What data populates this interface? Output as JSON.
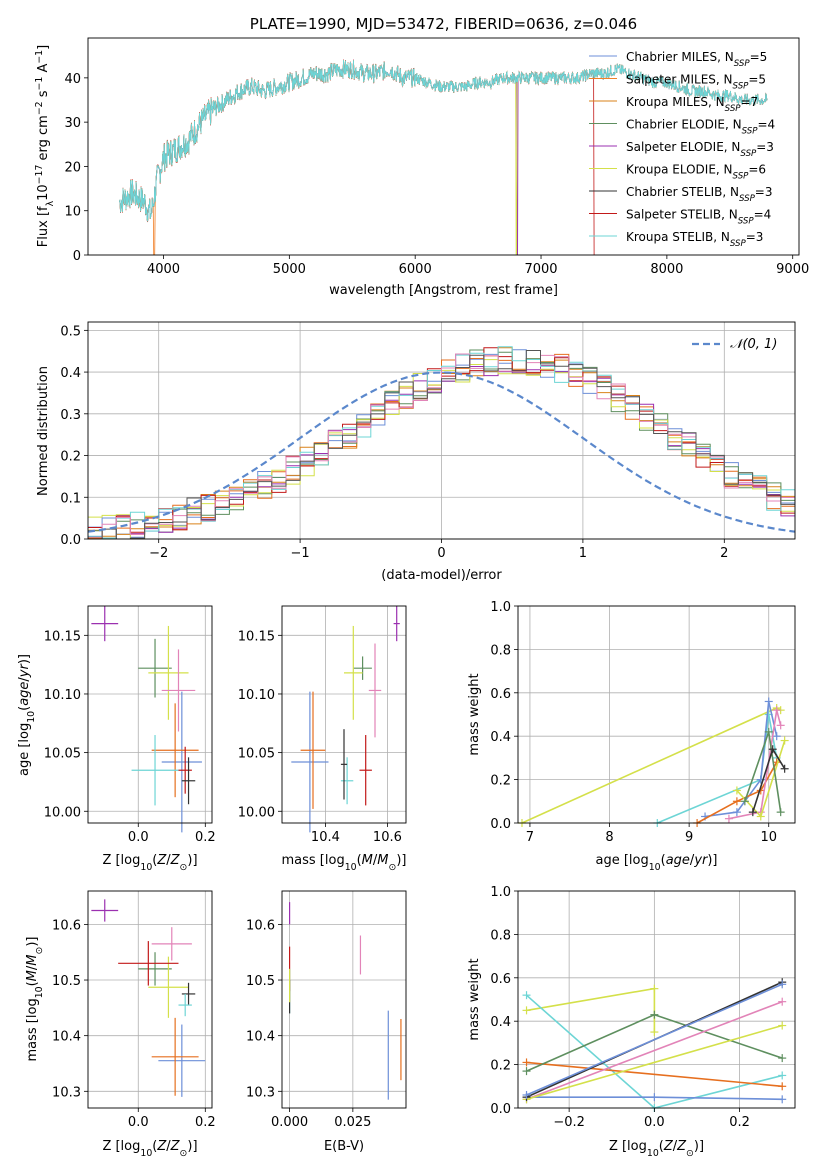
{
  "colors": {
    "series": [
      "#6d8fd8",
      "#f07f27",
      "#d9821a",
      "#5e8f5f",
      "#9b30b0",
      "#d4e04a",
      "#333333",
      "#c21919",
      "#6dd5d5"
    ],
    "ts_colors": [
      "#6d8fd8",
      "#e66f1f",
      "#5e8f5f",
      "#9b30b0",
      "#d4e04a",
      "#e284b8",
      "#c21919",
      "#6dd5d5",
      "#333333"
    ]
  },
  "chart_data": [
    {
      "type": "line",
      "title": "PLATE=1990, MJD=53472, FIBERID=0636, z=0.046",
      "xlabel": "wavelength [Angstrom, rest frame]",
      "ylabel": "Flux [f_λ 10^-17 erg cm^-2 s^-1 A^-1]",
      "xlim": [
        3400,
        9050
      ],
      "ylim": [
        0,
        49
      ],
      "xticks": [
        4000,
        5000,
        6000,
        7000,
        8000,
        9000
      ],
      "yticks": [
        0,
        10,
        20,
        30,
        40
      ],
      "legend_position": "right",
      "series": [
        {
          "name": "Chabrier MILES, N_SSP=5"
        },
        {
          "name": "Salpeter MILES, N_SSP=5"
        },
        {
          "name": "Kroupa MILES, N_SSP=7"
        },
        {
          "name": "Chabrier ELODIE, N_SSP=4"
        },
        {
          "name": "Salpeter ELODIE, N_SSP=3"
        },
        {
          "name": "Kroupa ELODIE, N_SSP=6"
        },
        {
          "name": "Chabrier STELIB, N_SSP=3"
        },
        {
          "name": "Salpeter STELIB, N_SSP=4"
        },
        {
          "name": "Kroupa STELIB, N_SSP=3"
        }
      ],
      "spectrum_x": [
        3650,
        3700,
        3750,
        3800,
        3850,
        3900,
        3950,
        4000,
        4100,
        4200,
        4300,
        4400,
        4500,
        4600,
        4700,
        4800,
        4900,
        5000,
        5100,
        5200,
        5300,
        5400,
        5500,
        5600,
        5700,
        5800,
        5900,
        6000,
        6100,
        6200,
        6300,
        6400,
        6500,
        6600,
        6700,
        6800,
        6900,
        7000,
        7100,
        7200,
        7300,
        7400,
        7500,
        7600,
        7700,
        7800,
        7900,
        8000,
        8100,
        8200,
        8300,
        8400,
        8500,
        8600,
        8700,
        8800
      ],
      "spectrum_y": [
        12,
        13,
        14,
        13,
        12,
        9,
        17,
        22,
        24,
        26,
        30,
        33,
        35,
        37,
        38,
        37,
        38,
        39,
        40,
        41,
        41,
        42,
        42,
        41,
        41,
        42,
        40,
        40,
        39,
        38,
        38,
        38,
        39,
        39,
        40,
        40,
        40,
        40,
        40,
        40,
        40,
        41,
        41,
        42,
        41,
        40,
        39,
        39,
        38,
        37,
        37,
        36,
        36,
        35,
        35,
        35
      ],
      "cutoffs": [
        {
          "series": 1,
          "x": 3920
        },
        {
          "series": 5,
          "x": 6800
        },
        {
          "series": 4,
          "x": 6810
        },
        {
          "series": 7,
          "x": 7420
        }
      ]
    },
    {
      "type": "histogram",
      "xlabel": "(data-model)/error",
      "ylabel": "Normed distribution",
      "xlim": [
        -2.5,
        2.5
      ],
      "ylim": [
        0,
        0.52
      ],
      "xticks": [
        -2,
        -1,
        0,
        1,
        2
      ],
      "yticks": [
        0.0,
        0.1,
        0.2,
        0.3,
        0.4,
        0.5
      ],
      "legend": "𝒩(0, 1)",
      "bin_width": 0.1,
      "bin_start": -2.5,
      "base_values": [
        0.018,
        0.022,
        0.026,
        0.032,
        0.038,
        0.046,
        0.054,
        0.064,
        0.074,
        0.086,
        0.1,
        0.112,
        0.13,
        0.146,
        0.166,
        0.186,
        0.208,
        0.23,
        0.252,
        0.276,
        0.3,
        0.324,
        0.346,
        0.366,
        0.382,
        0.396,
        0.41,
        0.42,
        0.426,
        0.43,
        0.43,
        0.426,
        0.418,
        0.408,
        0.394,
        0.378,
        0.358,
        0.338,
        0.316,
        0.292,
        0.268,
        0.244,
        0.222,
        0.198,
        0.176,
        0.156,
        0.136,
        0.118,
        0.102,
        0.088,
        0.074
      ]
    },
    {
      "type": "scatter",
      "xlabel": "Z [log10(Z/Z⊙)]",
      "ylabel": "age  [log10(age/yr)]",
      "xlim": [
        -0.15,
        0.22
      ],
      "ylim": [
        9.99,
        10.175
      ],
      "xticks": [
        0.0,
        0.2
      ],
      "yticks": [
        10.0,
        10.05,
        10.1,
        10.15
      ],
      "points": [
        {
          "x": 0.13,
          "y": 10.042,
          "xerr": 0.06,
          "yerr": 0.06,
          "c": 0
        },
        {
          "x": 0.11,
          "y": 10.052,
          "xerr": 0.07,
          "yerr": 0.04,
          "c": 1
        },
        {
          "x": 0.05,
          "y": 10.122,
          "xerr": 0.05,
          "yerr": 0.025,
          "c": 2
        },
        {
          "x": -0.1,
          "y": 10.16,
          "xerr": 0.04,
          "yerr": 0.015,
          "c": 3
        },
        {
          "x": 0.09,
          "y": 10.118,
          "xerr": 0.06,
          "yerr": 0.04,
          "c": 4
        },
        {
          "x": 0.12,
          "y": 10.103,
          "xerr": 0.05,
          "yerr": 0.035,
          "c": 5
        },
        {
          "x": 0.14,
          "y": 10.035,
          "xerr": 0.02,
          "yerr": 0.02,
          "c": 6
        },
        {
          "x": 0.05,
          "y": 10.035,
          "xerr": 0.07,
          "yerr": 0.03,
          "c": 7
        },
        {
          "x": 0.15,
          "y": 10.026,
          "xerr": 0.02,
          "yerr": 0.02,
          "c": 8
        }
      ]
    },
    {
      "type": "scatter",
      "xlabel": "mass [log10(M/M⊙)]",
      "ylabel": "",
      "xlim": [
        10.26,
        10.66
      ],
      "ylim": [
        9.99,
        10.175
      ],
      "xticks": [
        10.4,
        10.6
      ],
      "yticks": [
        10.0,
        10.05,
        10.1,
        10.15
      ],
      "points": [
        {
          "x": 10.35,
          "y": 10.042,
          "xerr": 0.06,
          "yerr": 0.06,
          "c": 0
        },
        {
          "x": 10.36,
          "y": 10.052,
          "xerr": 0.04,
          "yerr": 0.05,
          "c": 1
        },
        {
          "x": 10.52,
          "y": 10.122,
          "xerr": 0.03,
          "yerr": 0.01,
          "c": 2
        },
        {
          "x": 10.63,
          "y": 10.16,
          "xerr": 0.01,
          "yerr": 0.015,
          "c": 3
        },
        {
          "x": 10.49,
          "y": 10.118,
          "xerr": 0.03,
          "yerr": 0.04,
          "c": 4
        },
        {
          "x": 10.56,
          "y": 10.103,
          "xerr": 0.02,
          "yerr": 0.04,
          "c": 5
        },
        {
          "x": 10.53,
          "y": 10.035,
          "xerr": 0.02,
          "yerr": 0.03,
          "c": 6
        },
        {
          "x": 10.47,
          "y": 10.026,
          "xerr": 0.02,
          "yerr": 0.02,
          "c": 7
        },
        {
          "x": 10.46,
          "y": 10.04,
          "xerr": 0.01,
          "yerr": 0.03,
          "c": 8
        }
      ]
    },
    {
      "type": "line",
      "xlabel": "age  [log10(age/yr)]",
      "ylabel": "mass weight",
      "xlim": [
        6.85,
        10.33
      ],
      "ylim": [
        0,
        1.0
      ],
      "xticks": [
        7,
        8,
        9,
        10
      ],
      "yticks": [
        0.0,
        0.2,
        0.4,
        0.6,
        0.8,
        1.0
      ],
      "series": [
        {
          "c": 4,
          "x": [
            6.9,
            10.1,
            10.15
          ],
          "y": [
            0.0,
            0.53,
            0.52
          ]
        },
        {
          "c": 7,
          "x": [
            8.6,
            9.9,
            10.0,
            10.1
          ],
          "y": [
            0.0,
            0.2,
            0.5,
            0.3
          ]
        },
        {
          "c": 0,
          "x": [
            9.2,
            9.6,
            9.9,
            10.0,
            10.1
          ],
          "y": [
            0.03,
            0.05,
            0.2,
            0.56,
            0.4
          ]
        },
        {
          "c": 1,
          "x": [
            9.1,
            9.6,
            9.9,
            10.1
          ],
          "y": [
            0.0,
            0.1,
            0.15,
            0.28
          ]
        },
        {
          "c": 5,
          "x": [
            9.5,
            9.9,
            10.1,
            10.15
          ],
          "y": [
            0.02,
            0.05,
            0.52,
            0.45
          ]
        },
        {
          "c": 4,
          "x": [
            9.6,
            9.9,
            10.2
          ],
          "y": [
            0.15,
            0.03,
            0.38
          ]
        },
        {
          "c": 2,
          "x": [
            9.7,
            10.0,
            10.15
          ],
          "y": [
            0.1,
            0.42,
            0.05
          ]
        },
        {
          "c": 8,
          "x": [
            9.8,
            10.05,
            10.2
          ],
          "y": [
            0.05,
            0.34,
            0.25
          ]
        }
      ]
    },
    {
      "type": "scatter",
      "xlabel": "Z [log10(Z/Z⊙)]",
      "ylabel": "mass [log10(M/M⊙)]",
      "xlim": [
        -0.15,
        0.22
      ],
      "ylim": [
        10.27,
        10.66
      ],
      "xticks": [
        0.0,
        0.2
      ],
      "yticks": [
        10.3,
        10.4,
        10.5,
        10.6
      ],
      "points": [
        {
          "x": 0.13,
          "y": 10.355,
          "xerr": 0.07,
          "yerr": 0.065,
          "c": 0
        },
        {
          "x": 0.11,
          "y": 10.362,
          "xerr": 0.07,
          "yerr": 0.07,
          "c": 1
        },
        {
          "x": 0.05,
          "y": 10.52,
          "xerr": 0.05,
          "yerr": 0.03,
          "c": 2
        },
        {
          "x": -0.1,
          "y": 10.625,
          "xerr": 0.04,
          "yerr": 0.02,
          "c": 3
        },
        {
          "x": 0.09,
          "y": 10.487,
          "xerr": 0.06,
          "yerr": 0.055,
          "c": 4
        },
        {
          "x": 0.1,
          "y": 10.565,
          "xerr": 0.06,
          "yerr": 0.03,
          "c": 5
        },
        {
          "x": 0.15,
          "y": 10.475,
          "xerr": 0.02,
          "yerr": 0.02,
          "c": 8
        },
        {
          "x": 0.03,
          "y": 10.53,
          "xerr": 0.09,
          "yerr": 0.04,
          "c": 6
        },
        {
          "x": 0.14,
          "y": 10.455,
          "xerr": 0.02,
          "yerr": 0.02,
          "c": 7
        }
      ]
    },
    {
      "type": "scatter",
      "xlabel": "E(B-V)",
      "ylabel": "",
      "xlim": [
        -0.003,
        0.046
      ],
      "ylim": [
        10.27,
        10.66
      ],
      "xticks": [
        0.0,
        0.025
      ],
      "yticks": [
        10.3,
        10.4,
        10.5,
        10.6
      ],
      "points": [
        {
          "x": 0.0,
          "y": 10.62,
          "xerr": 0,
          "yerr": 0.02,
          "c": 3
        },
        {
          "x": 0.0,
          "y": 10.52,
          "xerr": 0,
          "yerr": 0.04,
          "c": 6
        },
        {
          "x": 0.0,
          "y": 10.48,
          "xerr": 0,
          "yerr": 0.04,
          "c": 7
        },
        {
          "x": 0.0,
          "y": 10.47,
          "xerr": 0,
          "yerr": 0.03,
          "c": 8
        },
        {
          "x": 0.0,
          "y": 10.49,
          "xerr": 0,
          "yerr": 0.03,
          "c": 4
        },
        {
          "x": 0.028,
          "y": 10.545,
          "xerr": 0,
          "yerr": 0.035,
          "c": 5
        },
        {
          "x": 0.039,
          "y": 10.365,
          "xerr": 0,
          "yerr": 0.08,
          "c": 0
        },
        {
          "x": 0.044,
          "y": 10.375,
          "xerr": 0,
          "yerr": 0.055,
          "c": 1
        }
      ]
    },
    {
      "type": "line",
      "xlabel": "Z [log10(Z/Z⊙)]",
      "ylabel": "mass weight",
      "xlim": [
        -0.32,
        0.33
      ],
      "ylim": [
        0,
        1.0
      ],
      "xticks": [
        -0.2,
        0.0,
        0.2
      ],
      "yticks": [
        0.0,
        0.2,
        0.4,
        0.6,
        0.8,
        1.0
      ],
      "series": [
        {
          "c": 4,
          "x": [
            -0.3,
            0.0,
            0.0
          ],
          "y": [
            0.45,
            0.55,
            0.35
          ]
        },
        {
          "c": 7,
          "x": [
            -0.3,
            0.0,
            0.3
          ],
          "y": [
            0.52,
            0.0,
            0.15
          ]
        },
        {
          "c": 0,
          "x": [
            -0.3,
            0.0,
            0.3
          ],
          "y": [
            0.05,
            0.05,
            0.04
          ]
        },
        {
          "c": 1,
          "x": [
            -0.3,
            0.3
          ],
          "y": [
            0.21,
            0.1
          ]
        },
        {
          "c": 2,
          "x": [
            -0.3,
            0.0,
            0.3
          ],
          "y": [
            0.17,
            0.43,
            0.23
          ]
        },
        {
          "c": 5,
          "x": [
            -0.3,
            0.3
          ],
          "y": [
            0.04,
            0.49
          ]
        },
        {
          "c": 4,
          "x": [
            -0.3,
            0.3
          ],
          "y": [
            0.04,
            0.38
          ]
        },
        {
          "c": 8,
          "x": [
            -0.3,
            0.3
          ],
          "y": [
            0.05,
            0.58
          ]
        },
        {
          "c": 0,
          "x": [
            -0.3,
            0.3
          ],
          "y": [
            0.06,
            0.57
          ]
        }
      ]
    }
  ]
}
